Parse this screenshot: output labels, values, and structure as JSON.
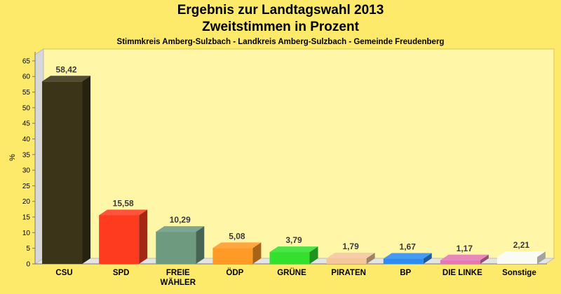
{
  "chart_data": {
    "type": "bar",
    "title": "Ergebnis zur Landtagswahl 2013",
    "subtitle": "Zweitstimmen in Prozent",
    "subtitle2": "Stimmkreis Amberg-Sulzbach - Landkreis Amberg-Sulzbach - Gemeinde Freudenberg",
    "ylabel": "%",
    "ylim": [
      0,
      67
    ],
    "yticks": [
      0,
      5,
      10,
      15,
      20,
      25,
      30,
      35,
      40,
      45,
      50,
      55,
      60,
      65
    ],
    "grid": false,
    "categories": [
      [
        "CSU"
      ],
      [
        "SPD"
      ],
      [
        "FREIE",
        "WÄHLER"
      ],
      [
        "ÖDP"
      ],
      [
        "GRÜNE"
      ],
      [
        "PIRATEN"
      ],
      [
        "BP"
      ],
      [
        "DIE LINKE"
      ],
      [
        "Sonstige"
      ]
    ],
    "values": [
      58.42,
      15.58,
      10.29,
      5.08,
      3.79,
      1.79,
      1.67,
      1.17,
      2.21
    ],
    "value_labels": [
      "58,42",
      "15,58",
      "10,29",
      "5,08",
      "3,79",
      "1,79",
      "1,67",
      "1,17",
      "2,21"
    ],
    "colors": [
      "#3b3419",
      "#ff3b1f",
      "#6e9a80",
      "#ff9a26",
      "#33e02e",
      "#f5c69a",
      "#2e8cf0",
      "#e478b4",
      "#fbfbf4"
    ]
  }
}
